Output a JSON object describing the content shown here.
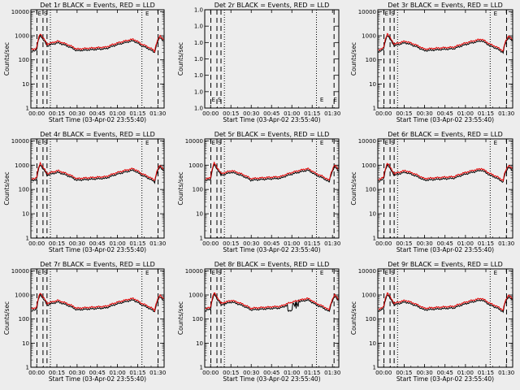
{
  "chart_data": [
    {
      "type": "line",
      "title": "Det 1r BLACK = Events, RED = LLD",
      "xlabel": "Start Time (03-Apr-02 23:55:40)",
      "ylabel": "Counts/sec",
      "xtick_labels": [
        "00:00",
        "00:15",
        "00:30",
        "00:45",
        "01:00",
        "01:15",
        "01:30"
      ],
      "xticks_min": [
        4.33,
        19.33,
        34.33,
        49.33,
        64.33,
        79.33,
        94.33
      ],
      "xlim_min": [
        0,
        99
      ],
      "ytick_labels": [
        "1",
        "10",
        "100",
        "1000",
        "10000"
      ],
      "ylim": [
        1,
        12000
      ],
      "log_y": true,
      "profile": "normal",
      "series": [
        {
          "name": "Events",
          "color": "#000000"
        },
        {
          "name": "LLD",
          "color": "#e00000"
        }
      ],
      "markers": {
        "dashed_min": [
          4.5,
          9,
          12,
          94.5
        ],
        "dotted_min": [
          14.5,
          82.5
        ],
        "labels": [
          {
            "text": "E",
            "x": 4.5
          },
          {
            "text": "S",
            "x": 9
          },
          {
            "text": "E",
            "x": 84.5
          }
        ]
      }
    },
    {
      "type": "line",
      "title": "Det 2r BLACK = Events, RED = LLD",
      "xlabel": "Start Time (03-Apr-02 23:55:40)",
      "ylabel": "Counts/sec",
      "xtick_labels": [
        "00:00",
        "00:15",
        "00:30",
        "00:45",
        "01:00",
        "01:15",
        "01:30"
      ],
      "xticks_min": [
        4.33,
        19.33,
        34.33,
        49.33,
        64.33,
        79.33,
        94.33
      ],
      "xlim_min": [
        0,
        99
      ],
      "ytick_labels": [
        "1.0",
        "1.0",
        "1.0",
        "1.0",
        "1.0",
        "1.0",
        "1.0"
      ],
      "ylim": [
        0,
        6
      ],
      "log_y": false,
      "profile": "empty",
      "series": [],
      "markers": {
        "dashed_min": [
          4.5,
          9,
          12,
          95.5
        ],
        "dotted_min": [
          14.5,
          82.5
        ],
        "labels": [
          {
            "text": "E",
            "x": 4.5
          },
          {
            "text": "S",
            "x": 9
          },
          {
            "text": "E",
            "x": 84.5
          },
          {
            "text": "E",
            "x": 94.5
          }
        ]
      }
    },
    {
      "type": "line",
      "title": "Det 3r BLACK = Events, RED = LLD",
      "xlabel": "Start Time (03-Apr-02 23:55:40)",
      "ylabel": "Counts/sec",
      "xtick_labels": [
        "00:00",
        "00:15",
        "00:30",
        "00:45",
        "01:00",
        "01:15",
        "01:30"
      ],
      "xticks_min": [
        4.33,
        19.33,
        34.33,
        49.33,
        64.33,
        79.33,
        94.33
      ],
      "xlim_min": [
        0,
        99
      ],
      "ytick_labels": [
        "1",
        "10",
        "100",
        "1000",
        "10000"
      ],
      "ylim": [
        1,
        12000
      ],
      "log_y": true,
      "profile": "normal",
      "series": [
        {
          "name": "Events",
          "color": "#000000"
        },
        {
          "name": "LLD",
          "color": "#e00000"
        }
      ],
      "markers": {
        "dashed_min": [
          4.5,
          9,
          12,
          94.5
        ],
        "dotted_min": [
          14.5,
          82.5
        ],
        "labels": [
          {
            "text": "E",
            "x": 4.5
          },
          {
            "text": "S",
            "x": 9
          },
          {
            "text": "E",
            "x": 84.5
          }
        ]
      }
    },
    {
      "type": "line",
      "title": "Det 4r BLACK = Events, RED = LLD",
      "xlabel": "Start Time (03-Apr-02 23:55:40)",
      "ylabel": "Counts/sec",
      "xtick_labels": [
        "00:00",
        "00:15",
        "00:30",
        "00:45",
        "01:00",
        "01:15",
        "01:30"
      ],
      "xticks_min": [
        4.33,
        19.33,
        34.33,
        49.33,
        64.33,
        79.33,
        94.33
      ],
      "xlim_min": [
        0,
        99
      ],
      "ytick_labels": [
        "1",
        "10",
        "100",
        "1000",
        "10000"
      ],
      "ylim": [
        1,
        12000
      ],
      "log_y": true,
      "profile": "normal",
      "series": [
        {
          "name": "Events",
          "color": "#000000"
        },
        {
          "name": "LLD",
          "color": "#e00000"
        }
      ],
      "markers": {
        "dashed_min": [
          4.5,
          9,
          12,
          94.5
        ],
        "dotted_min": [
          14.5,
          82.5
        ],
        "labels": [
          {
            "text": "E",
            "x": 4.5
          },
          {
            "text": "S",
            "x": 9
          },
          {
            "text": "E",
            "x": 84.5
          }
        ]
      }
    },
    {
      "type": "line",
      "title": "Det 5r BLACK = Events, RED = LLD",
      "xlabel": "Start Time (03-Apr-02 23:55:40)",
      "ylabel": "Counts/sec",
      "xtick_labels": [
        "00:00",
        "00:15",
        "00:30",
        "00:45",
        "01:00",
        "01:15",
        "01:30"
      ],
      "xticks_min": [
        4.33,
        19.33,
        34.33,
        49.33,
        64.33,
        79.33,
        94.33
      ],
      "xlim_min": [
        0,
        99
      ],
      "ytick_labels": [
        "1",
        "10",
        "100",
        "1000",
        "10000"
      ],
      "ylim": [
        1,
        12000
      ],
      "log_y": true,
      "profile": "normal",
      "series": [
        {
          "name": "Events",
          "color": "#000000"
        },
        {
          "name": "LLD",
          "color": "#e00000"
        }
      ],
      "markers": {
        "dashed_min": [
          4.5,
          9,
          12,
          95.5
        ],
        "dotted_min": [
          14.5,
          82.5
        ],
        "labels": [
          {
            "text": "E",
            "x": 4.5
          },
          {
            "text": "S",
            "x": 9
          },
          {
            "text": "E",
            "x": 84.5
          }
        ]
      }
    },
    {
      "type": "line",
      "title": "Det 6r BLACK = Events, RED = LLD",
      "xlabel": "Start Time (03-Apr-02 23:55:40)",
      "ylabel": "Counts/sec",
      "xtick_labels": [
        "00:00",
        "00:15",
        "00:30",
        "00:45",
        "01:00",
        "01:15",
        "01:30"
      ],
      "xticks_min": [
        4.33,
        19.33,
        34.33,
        49.33,
        64.33,
        79.33,
        94.33
      ],
      "xlim_min": [
        0,
        99
      ],
      "ytick_labels": [
        "1",
        "10",
        "100",
        "1000",
        "10000"
      ],
      "ylim": [
        1,
        12000
      ],
      "log_y": true,
      "profile": "normal",
      "series": [
        {
          "name": "Events",
          "color": "#000000"
        },
        {
          "name": "LLD",
          "color": "#e00000"
        }
      ],
      "markers": {
        "dashed_min": [
          4.5,
          9,
          12,
          94.5
        ],
        "dotted_min": [
          14.5,
          82.5
        ],
        "labels": [
          {
            "text": "E",
            "x": 4.5
          },
          {
            "text": "S",
            "x": 9
          },
          {
            "text": "E",
            "x": 84.5
          }
        ]
      }
    },
    {
      "type": "line",
      "title": "Det 7r BLACK = Events, RED = LLD",
      "xlabel": "Start Time (03-Apr-02 23:55:40)",
      "ylabel": "Counts/sec",
      "xtick_labels": [
        "00:00",
        "00:15",
        "00:30",
        "00:45",
        "01:00",
        "01:15",
        "01:30"
      ],
      "xticks_min": [
        4.33,
        19.33,
        34.33,
        49.33,
        64.33,
        79.33,
        94.33
      ],
      "xlim_min": [
        0,
        99
      ],
      "ytick_labels": [
        "1",
        "10",
        "100",
        "1000",
        "10000"
      ],
      "ylim": [
        1,
        12000
      ],
      "log_y": true,
      "profile": "normal",
      "series": [
        {
          "name": "Events",
          "color": "#000000"
        },
        {
          "name": "LLD",
          "color": "#e00000"
        }
      ],
      "markers": {
        "dashed_min": [
          4.5,
          9,
          12,
          94.5
        ],
        "dotted_min": [
          14.5,
          82.5
        ],
        "labels": [
          {
            "text": "E",
            "x": 4.5
          },
          {
            "text": "S",
            "x": 9
          },
          {
            "text": "E",
            "x": 84.5
          }
        ]
      }
    },
    {
      "type": "line",
      "title": "Det 8r BLACK = Events, RED = LLD",
      "xlabel": "Start Time (03-Apr-02 23:55:40)",
      "ylabel": "Counts/sec",
      "xtick_labels": [
        "00:00",
        "00:15",
        "00:30",
        "00:45",
        "01:00",
        "01:15",
        "01:30"
      ],
      "xticks_min": [
        4.33,
        19.33,
        34.33,
        49.33,
        64.33,
        79.33,
        94.33
      ],
      "xlim_min": [
        0,
        99
      ],
      "ytick_labels": [
        "1",
        "10",
        "100",
        "1000",
        "10000"
      ],
      "ylim": [
        1,
        12000
      ],
      "log_y": true,
      "profile": "det8",
      "series": [
        {
          "name": "Events",
          "color": "#000000"
        },
        {
          "name": "LLD",
          "color": "#e00000"
        }
      ],
      "markers": {
        "dashed_min": [
          4.5,
          9,
          12,
          95.5
        ],
        "dotted_min": [
          14.5,
          82.5
        ],
        "labels": [
          {
            "text": "E",
            "x": 4.5
          },
          {
            "text": "S",
            "x": 9
          },
          {
            "text": "E",
            "x": 84.5
          }
        ]
      }
    },
    {
      "type": "line",
      "title": "Det 9r BLACK = Events, RED = LLD",
      "xlabel": "Start Time (03-Apr-02 23:55:40)",
      "ylabel": "Counts/sec",
      "xtick_labels": [
        "00:00",
        "00:15",
        "00:30",
        "00:45",
        "01:00",
        "01:15",
        "01:30"
      ],
      "xticks_min": [
        4.33,
        19.33,
        34.33,
        49.33,
        64.33,
        79.33,
        94.33
      ],
      "xlim_min": [
        0,
        99
      ],
      "ytick_labels": [
        "1",
        "10",
        "100",
        "1000",
        "10000"
      ],
      "ylim": [
        1,
        12000
      ],
      "log_y": true,
      "profile": "normal",
      "series": [
        {
          "name": "Events",
          "color": "#000000"
        },
        {
          "name": "LLD",
          "color": "#e00000"
        }
      ],
      "markers": {
        "dashed_min": [
          4.5,
          9,
          12,
          94.5
        ],
        "dotted_min": [
          14.5,
          82.5
        ],
        "labels": [
          {
            "text": "E",
            "x": 4.5
          },
          {
            "text": "S",
            "x": 9
          },
          {
            "text": "E",
            "x": 84.5
          }
        ]
      }
    }
  ]
}
